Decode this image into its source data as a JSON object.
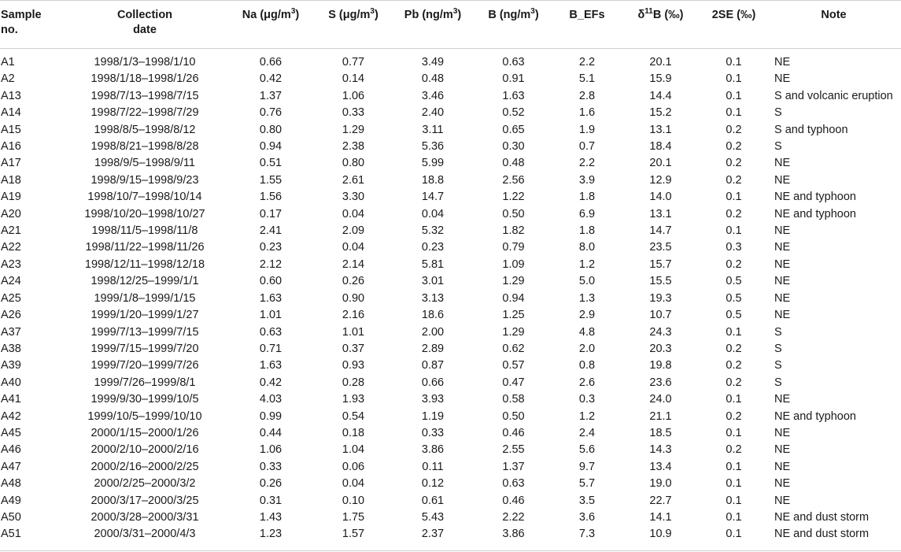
{
  "table": {
    "headers": {
      "sample_line1": "Sample",
      "sample_line2": "no.",
      "date_line1": "Collection",
      "date_line2": "date",
      "na_prefix": "Na (μg/m",
      "na_sup": "3",
      "na_suffix": ")",
      "s_prefix": "S (μg/m",
      "s_sup": "3",
      "s_suffix": ")",
      "pb_prefix": "Pb (ng/m",
      "pb_sup": "3",
      "pb_suffix": ")",
      "b_prefix": "B (ng/m",
      "b_sup": "3",
      "b_suffix": ")",
      "befs": "B_EFs",
      "delta_prefix": "δ",
      "delta_sup": "11",
      "delta_suffix": "B (‰)",
      "se": "2SE (‰)",
      "note": "Note"
    },
    "rows": [
      [
        "A1",
        "1998/1/3–1998/1/10",
        "0.66",
        "0.77",
        "3.49",
        "0.63",
        "2.2",
        "20.1",
        "0.1",
        "NE"
      ],
      [
        "A2",
        "1998/1/18–1998/1/26",
        "0.42",
        "0.14",
        "0.48",
        "0.91",
        "5.1",
        "15.9",
        "0.1",
        "NE"
      ],
      [
        "A13",
        "1998/7/13–1998/7/15",
        "1.37",
        "1.06",
        "3.46",
        "1.63",
        "2.8",
        "14.4",
        "0.1",
        "S and volcanic eruption"
      ],
      [
        "A14",
        "1998/7/22–1998/7/29",
        "0.76",
        "0.33",
        "2.40",
        "0.52",
        "1.6",
        "15.2",
        "0.1",
        "S"
      ],
      [
        "A15",
        "1998/8/5–1998/8/12",
        "0.80",
        "1.29",
        "3.11",
        "0.65",
        "1.9",
        "13.1",
        "0.2",
        "S and typhoon"
      ],
      [
        "A16",
        "1998/8/21–1998/8/28",
        "0.94",
        "2.38",
        "5.36",
        "0.30",
        "0.7",
        "18.4",
        "0.2",
        "S"
      ],
      [
        "A17",
        "1998/9/5–1998/9/11",
        "0.51",
        "0.80",
        "5.99",
        "0.48",
        "2.2",
        "20.1",
        "0.2",
        "NE"
      ],
      [
        "A18",
        "1998/9/15–1998/9/23",
        "1.55",
        "2.61",
        "18.8",
        "2.56",
        "3.9",
        "12.9",
        "0.2",
        "NE"
      ],
      [
        "A19",
        "1998/10/7–1998/10/14",
        "1.56",
        "3.30",
        "14.7",
        "1.22",
        "1.8",
        "14.0",
        "0.1",
        "NE and typhoon"
      ],
      [
        "A20",
        "1998/10/20–1998/10/27",
        "0.17",
        "0.04",
        "0.04",
        "0.50",
        "6.9",
        "13.1",
        "0.2",
        "NE and typhoon"
      ],
      [
        "A21",
        "1998/11/5–1998/11/8",
        "2.41",
        "2.09",
        "5.32",
        "1.82",
        "1.8",
        "14.7",
        "0.1",
        "NE"
      ],
      [
        "A22",
        "1998/11/22–1998/11/26",
        "0.23",
        "0.04",
        "0.23",
        "0.79",
        "8.0",
        "23.5",
        "0.3",
        "NE"
      ],
      [
        "A23",
        "1998/12/11–1998/12/18",
        "2.12",
        "2.14",
        "5.81",
        "1.09",
        "1.2",
        "15.7",
        "0.2",
        "NE"
      ],
      [
        "A24",
        "1998/12/25–1999/1/1",
        "0.60",
        "0.26",
        "3.01",
        "1.29",
        "5.0",
        "15.5",
        "0.5",
        "NE"
      ],
      [
        "A25",
        "1999/1/8–1999/1/15",
        "1.63",
        "0.90",
        "3.13",
        "0.94",
        "1.3",
        "19.3",
        "0.5",
        "NE"
      ],
      [
        "A26",
        "1999/1/20–1999/1/27",
        "1.01",
        "2.16",
        "18.6",
        "1.25",
        "2.9",
        "10.7",
        "0.5",
        "NE"
      ],
      [
        "A37",
        "1999/7/13–1999/7/15",
        "0.63",
        "1.01",
        "2.00",
        "1.29",
        "4.8",
        "24.3",
        "0.1",
        "S"
      ],
      [
        "A38",
        "1999/7/15–1999/7/20",
        "0.71",
        "0.37",
        "2.89",
        "0.62",
        "2.0",
        "20.3",
        "0.2",
        "S"
      ],
      [
        "A39",
        "1999/7/20–1999/7/26",
        "1.63",
        "0.93",
        "0.87",
        "0.57",
        "0.8",
        "19.8",
        "0.2",
        "S"
      ],
      [
        "A40",
        "1999/7/26–1999/8/1",
        "0.42",
        "0.28",
        "0.66",
        "0.47",
        "2.6",
        "23.6",
        "0.2",
        "S"
      ],
      [
        "A41",
        "1999/9/30–1999/10/5",
        "4.03",
        "1.93",
        "3.93",
        "0.58",
        "0.3",
        "24.0",
        "0.1",
        "NE"
      ],
      [
        "A42",
        "1999/10/5–1999/10/10",
        "0.99",
        "0.54",
        "1.19",
        "0.50",
        "1.2",
        "21.1",
        "0.2",
        "NE and typhoon"
      ],
      [
        "A45",
        "2000/1/15–2000/1/26",
        "0.44",
        "0.18",
        "0.33",
        "0.46",
        "2.4",
        "18.5",
        "0.1",
        "NE"
      ],
      [
        "A46",
        "2000/2/10–2000/2/16",
        "1.06",
        "1.04",
        "3.86",
        "2.55",
        "5.6",
        "14.3",
        "0.2",
        "NE"
      ],
      [
        "A47",
        "2000/2/16–2000/2/25",
        "0.33",
        "0.06",
        "0.11",
        "1.37",
        "9.7",
        "13.4",
        "0.1",
        "NE"
      ],
      [
        "A48",
        "2000/2/25–2000/3/2",
        "0.26",
        "0.04",
        "0.12",
        "0.63",
        "5.7",
        "19.0",
        "0.1",
        "NE"
      ],
      [
        "A49",
        "2000/3/17–2000/3/25",
        "0.31",
        "0.10",
        "0.61",
        "0.46",
        "3.5",
        "22.7",
        "0.1",
        "NE"
      ],
      [
        "A50",
        "2000/3/28–2000/3/31",
        "1.43",
        "1.75",
        "5.43",
        "2.22",
        "3.6",
        "14.1",
        "0.1",
        "NE and dust storm"
      ],
      [
        "A51",
        "2000/3/31–2000/4/3",
        "1.23",
        "1.57",
        "2.37",
        "3.86",
        "7.3",
        "10.9",
        "0.1",
        "NE and dust storm"
      ]
    ]
  }
}
